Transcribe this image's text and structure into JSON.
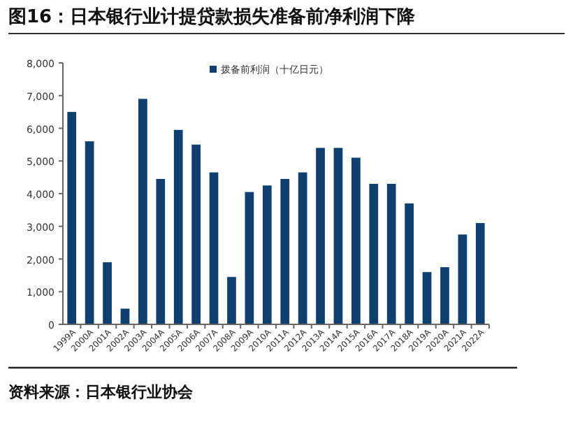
{
  "chart_data": {
    "type": "bar",
    "title": "图16：日本银行业计提贷款损失准备前净利润下降",
    "categories": [
      "1999A",
      "2000A",
      "2001A",
      "2002A",
      "2003A",
      "2004A",
      "2005A",
      "2006A",
      "2007A",
      "2008A",
      "2009A",
      "2010A",
      "2011A",
      "2012A",
      "2013A",
      "2014A",
      "2015A",
      "2016A",
      "2017A",
      "2018A",
      "2019A",
      "2020A",
      "2021A",
      "2022A"
    ],
    "series": [
      {
        "name": "拨备前利润（十亿日元）",
        "color": "#0e3f6e",
        "values": [
          6500,
          5600,
          1900,
          480,
          6900,
          4450,
          5950,
          5500,
          4650,
          1450,
          4050,
          4250,
          4450,
          4650,
          5400,
          5400,
          5100,
          4300,
          4300,
          3700,
          1600,
          1750,
          2750,
          3100
        ]
      }
    ],
    "ylim": [
      0,
      8000
    ],
    "yticks": [
      0,
      {
        "value": 1000,
        "label": "1,000"
      },
      {
        "value": 2000,
        "label": "2,000"
      },
      {
        "value": 3000,
        "label": "3,000"
      },
      {
        "value": 4000,
        "label": "4,000"
      },
      {
        "value": 5000,
        "label": "5,000"
      },
      {
        "value": 6000,
        "label": "6,000"
      },
      {
        "value": 7000,
        "label": "7,000"
      },
      {
        "value": 8000,
        "label": "8,000"
      }
    ],
    "grid": false,
    "legend": "top",
    "annotations": [
      "资料来源：日本银行业协会"
    ]
  }
}
